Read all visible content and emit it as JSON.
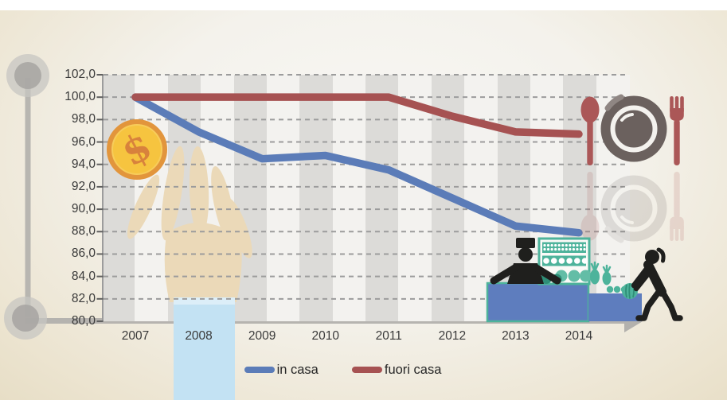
{
  "chart_data": {
    "type": "line",
    "title": "",
    "xlabel": "",
    "ylabel": "",
    "categories": [
      "2007",
      "2008",
      "2009",
      "2010",
      "2011",
      "2012",
      "2013",
      "2014"
    ],
    "series": [
      {
        "name": "in casa",
        "color": "#5b7cb8",
        "values": [
          100.0,
          96.9,
          94.5,
          94.8,
          93.5,
          91.0,
          88.5,
          87.9
        ]
      },
      {
        "name": "fuori casa",
        "color": "#a65252",
        "values": [
          100.0,
          100.0,
          100.0,
          100.0,
          100.0,
          98.3,
          96.9,
          96.7
        ]
      }
    ],
    "ylim": [
      80,
      102
    ],
    "ytick_step": 2,
    "ytick_labels": [
      "102,0",
      "100,0",
      "98,0",
      "96,0",
      "94,0",
      "92,0",
      "90,0",
      "88,0",
      "86,0",
      "84,0",
      "82,0",
      "80,0"
    ],
    "grid": "horizontal-dashed",
    "legend_position": "bottom-center"
  },
  "legend": {
    "items": [
      {
        "label": "in casa",
        "color": "#5b7cb8"
      },
      {
        "label": "fuori casa",
        "color": "#a65252"
      }
    ]
  },
  "decorations": {
    "coin": {
      "symbol": "$",
      "fill": "#f6c43f",
      "border": "#e2953c",
      "glyph_color": "#d8823c"
    },
    "hand": {
      "skin": "#ebd9b8",
      "sleeve": "#c3e2f3",
      "cuff": "#dceef8"
    },
    "dining_set": {
      "utensil_color": "#ab5757",
      "plate_color": "#6b615e"
    },
    "market_stall": {
      "teal": "#4db39b",
      "dark_teal": "#2f8e77",
      "counter_blue": "#5e7dbe",
      "silhouette": "#1f1f1d"
    },
    "axis_decor": {
      "gray": "#b3b1ad"
    }
  },
  "colors": {
    "plot_stripe_gray": "#dcdbd8",
    "plot_stripe_light": "#f3f2ef",
    "gridline": "#9c9c9c",
    "text": "#3a3a3a"
  }
}
